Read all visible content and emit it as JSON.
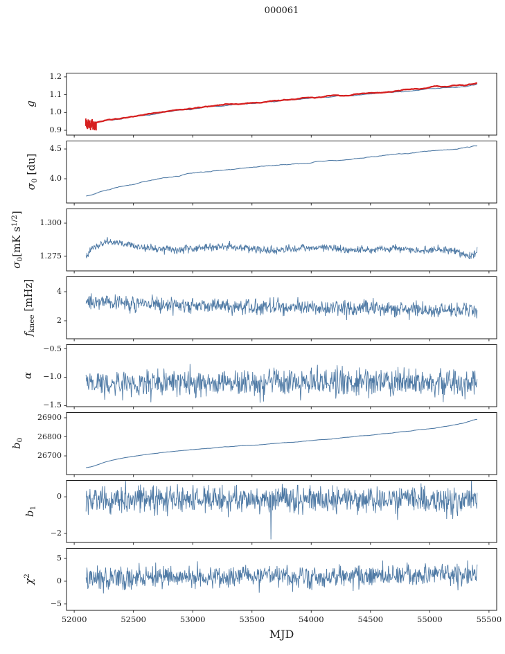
{
  "chart_data": {
    "type": "line",
    "title": "000061",
    "xlabel": "MJD",
    "grid": false,
    "legend": null,
    "xlim": [
      51935,
      55565
    ],
    "x_data_range": [
      52100,
      55400
    ],
    "xticks": [
      52000,
      52500,
      53000,
      53500,
      54000,
      54500,
      55000,
      55500
    ],
    "xtick_labels": [
      "52000",
      "52500",
      "53000",
      "53500",
      "54000",
      "54500",
      "55000",
      "55500"
    ],
    "colors": {
      "line": "#4f7aa5",
      "highlight": "#d62020",
      "axis": "#1c1c1c",
      "text": "#1c1c1c",
      "background": "#ffffff"
    },
    "panels": [
      {
        "id": "g",
        "label_text": "g",
        "label_segments": [
          {
            "t": "g",
            "s": "i"
          }
        ],
        "ylim": [
          0.873,
          1.223
        ],
        "ytick_values": [
          0.9,
          1.0,
          1.1,
          1.2
        ],
        "ytick_labels": [
          "0.9",
          "1.0",
          "1.1",
          "1.2"
        ],
        "series": [
          {
            "name": "gain-reference",
            "color": "#4f7aa5",
            "width": 1.1,
            "points": 420,
            "noise": 0.008,
            "smooth": 6,
            "trend": [
              [
                52100,
                0.93
              ],
              [
                52200,
                0.942
              ],
              [
                52400,
                0.964
              ],
              [
                52600,
                0.984
              ],
              [
                52800,
                1.004
              ],
              [
                53000,
                1.02
              ],
              [
                53200,
                1.034
              ],
              [
                53400,
                1.046
              ],
              [
                53600,
                1.057
              ],
              [
                53800,
                1.068
              ],
              [
                54000,
                1.08
              ],
              [
                54200,
                1.091
              ],
              [
                54400,
                1.101
              ],
              [
                54600,
                1.111
              ],
              [
                54800,
                1.12
              ],
              [
                55000,
                1.133
              ],
              [
                55150,
                1.139
              ],
              [
                55250,
                1.146
              ],
              [
                55350,
                1.155
              ],
              [
                55400,
                1.159
              ]
            ]
          },
          {
            "name": "gain",
            "color": "#d62020",
            "width": 2.3,
            "points": 420,
            "noise": 0.008,
            "smooth": 6,
            "trend": [
              [
                52100,
                0.933
              ],
              [
                52200,
                0.946
              ],
              [
                52400,
                0.968
              ],
              [
                52600,
                0.988
              ],
              [
                52800,
                1.008
              ],
              [
                53000,
                1.025
              ],
              [
                53200,
                1.038
              ],
              [
                53400,
                1.05
              ],
              [
                53600,
                1.061
              ],
              [
                53800,
                1.072
              ],
              [
                54000,
                1.085
              ],
              [
                54200,
                1.095
              ],
              [
                54400,
                1.105
              ],
              [
                54600,
                1.115
              ],
              [
                54800,
                1.125
              ],
              [
                55000,
                1.14
              ],
              [
                55150,
                1.147
              ],
              [
                55250,
                1.152
              ],
              [
                55350,
                1.16
              ],
              [
                55400,
                1.165
              ]
            ]
          }
        ],
        "errorbars": {
          "color": "#d62020",
          "x_start": 52098,
          "x_end": 52185,
          "n": 14,
          "y": 0.933,
          "y_jitter": 0.013,
          "yerr": 0.021
        }
      },
      {
        "id": "sigma0-du",
        "label_text": "σ0 [du]",
        "label_segments": [
          {
            "t": "σ",
            "s": "i"
          },
          {
            "t": "0",
            "s": "sub"
          },
          {
            "t": " [du]",
            "s": "n"
          }
        ],
        "ylim": [
          3.593,
          4.64
        ],
        "ytick_values": [
          4.0,
          4.5
        ],
        "ytick_labels": [
          "4.0",
          "4.5"
        ],
        "series": [
          {
            "name": "sigma0-du",
            "color": "#4f7aa5",
            "width": 1.1,
            "points": 460,
            "noise": 0.018,
            "smooth": 5,
            "trend": [
              [
                52100,
                3.7
              ],
              [
                52250,
                3.8
              ],
              [
                52400,
                3.87
              ],
              [
                52600,
                3.96
              ],
              [
                52800,
                4.03
              ],
              [
                53000,
                4.09
              ],
              [
                53200,
                4.135
              ],
              [
                53400,
                4.175
              ],
              [
                53600,
                4.21
              ],
              [
                53800,
                4.24
              ],
              [
                54000,
                4.275
              ],
              [
                54200,
                4.305
              ],
              [
                54400,
                4.34
              ],
              [
                54600,
                4.39
              ],
              [
                54800,
                4.42
              ],
              [
                55000,
                4.46
              ],
              [
                55200,
                4.5
              ],
              [
                55300,
                4.52
              ],
              [
                55400,
                4.56
              ]
            ]
          }
        ]
      },
      {
        "id": "sigma0-mks",
        "label_text": "σ0[mK s1/2]",
        "label_segments": [
          {
            "t": "σ",
            "s": "i"
          },
          {
            "t": "0",
            "s": "sub"
          },
          {
            "t": "[mK s",
            "s": "n"
          },
          {
            "t": "1/2",
            "s": "sup"
          },
          {
            "t": "]",
            "s": "n"
          }
        ],
        "ylim": [
          1.264,
          1.311
        ],
        "ytick_values": [
          1.275,
          1.3
        ],
        "ytick_labels": [
          "1.275",
          "1.300"
        ],
        "series": [
          {
            "name": "sigma0-mks",
            "color": "#4f7aa5",
            "width": 0.9,
            "points": 900,
            "noise": 0.0015,
            "smooth": 0,
            "trend": [
              [
                52100,
                1.2755
              ],
              [
                52180,
                1.282
              ],
              [
                52280,
                1.286
              ],
              [
                52400,
                1.2845
              ],
              [
                52550,
                1.282
              ],
              [
                52700,
                1.2805
              ],
              [
                52900,
                1.28
              ],
              [
                53100,
                1.282
              ],
              [
                53300,
                1.2825
              ],
              [
                53500,
                1.2808
              ],
              [
                53700,
                1.279
              ],
              [
                53900,
                1.281
              ],
              [
                54100,
                1.2818
              ],
              [
                54300,
                1.28
              ],
              [
                54500,
                1.2798
              ],
              [
                54700,
                1.2808
              ],
              [
                54900,
                1.279
              ],
              [
                55100,
                1.28
              ],
              [
                55250,
                1.278
              ],
              [
                55330,
                1.2745
              ],
              [
                55400,
                1.2785
              ]
            ]
          }
        ]
      },
      {
        "id": "fknee",
        "label_text": "fknee [mHz]",
        "label_segments": [
          {
            "t": "f",
            "s": "i"
          },
          {
            "t": "knee",
            "s": "sub"
          },
          {
            "t": " [mHz]",
            "s": "n"
          }
        ],
        "ylim": [
          0.76,
          5.05
        ],
        "ytick_values": [
          2,
          4
        ],
        "ytick_labels": [
          "2",
          "4"
        ],
        "series": [
          {
            "name": "fknee",
            "color": "#4f7aa5",
            "width": 0.9,
            "points": 900,
            "noise": 0.27,
            "smooth": 0,
            "trend": [
              [
                52100,
                3.35
              ],
              [
                52400,
                3.25
              ],
              [
                52800,
                3.12
              ],
              [
                53200,
                3.02
              ],
              [
                53600,
                2.95
              ],
              [
                54000,
                2.9
              ],
              [
                54400,
                2.85
              ],
              [
                54800,
                2.8
              ],
              [
                55100,
                2.76
              ],
              [
                55400,
                2.72
              ]
            ]
          }
        ]
      },
      {
        "id": "alpha",
        "label_text": "α",
        "label_segments": [
          {
            "t": "α",
            "s": "i"
          }
        ],
        "ylim": [
          -1.52,
          -0.42
        ],
        "ytick_values": [
          -1.5,
          -1.0,
          -0.5
        ],
        "ytick_labels": [
          "−1.5",
          "−1.0",
          "−0.5"
        ],
        "series": [
          {
            "name": "alpha",
            "color": "#4f7aa5",
            "width": 0.9,
            "points": 900,
            "noise": 0.115,
            "smooth": 0,
            "trend": [
              [
                52100,
                -1.1
              ],
              [
                55400,
                -1.1
              ]
            ]
          }
        ]
      },
      {
        "id": "b0",
        "label_text": "b0",
        "label_segments": [
          {
            "t": "b",
            "s": "i"
          },
          {
            "t": "0",
            "s": "sub"
          }
        ],
        "ylim": [
          26602,
          26929
        ],
        "ytick_values": [
          26700,
          26800,
          26900
        ],
        "ytick_labels": [
          "26700",
          "26800",
          "26900"
        ],
        "series": [
          {
            "name": "b0",
            "color": "#4f7aa5",
            "width": 1.1,
            "points": 460,
            "noise": 2.5,
            "smooth": 5,
            "trend": [
              [
                52100,
                26636
              ],
              [
                52250,
                26664
              ],
              [
                52400,
                26688
              ],
              [
                52550,
                26703
              ],
              [
                52700,
                26715
              ],
              [
                52850,
                26724
              ],
              [
                53000,
                26733
              ],
              [
                53200,
                26743
              ],
              [
                53400,
                26752
              ],
              [
                53600,
                26760
              ],
              [
                53800,
                26770
              ],
              [
                54000,
                26780
              ],
              [
                54200,
                26791
              ],
              [
                54400,
                26803
              ],
              [
                54600,
                26815
              ],
              [
                54800,
                26828
              ],
              [
                55000,
                26843
              ],
              [
                55150,
                26856
              ],
              [
                55300,
                26872
              ],
              [
                55400,
                26893
              ]
            ]
          }
        ]
      },
      {
        "id": "b1",
        "label_text": "b1",
        "label_segments": [
          {
            "t": "b",
            "s": "i"
          },
          {
            "t": "1",
            "s": "sub"
          }
        ],
        "ylim": [
          -2.49,
          0.91
        ],
        "ytick_values": [
          -2,
          0
        ],
        "ytick_labels": [
          "−2",
          "0"
        ],
        "series": [
          {
            "name": "b1",
            "color": "#4f7aa5",
            "width": 0.9,
            "points": 900,
            "noise": 0.38,
            "smooth": 0,
            "spikes": [
              {
                "x": 53660,
                "y": -2.32
              }
            ],
            "trend": [
              [
                52100,
                -0.18
              ],
              [
                55400,
                -0.18
              ]
            ]
          }
        ]
      },
      {
        "id": "chi2",
        "label_text": "χ2",
        "label_segments": [
          {
            "t": "χ",
            "s": "i"
          },
          {
            "t": "2",
            "s": "sup"
          }
        ],
        "ylim": [
          -6.4,
          7.3
        ],
        "ytick_values": [
          -5,
          0,
          5
        ],
        "ytick_labels": [
          "−5",
          "0",
          "5"
        ],
        "series": [
          {
            "name": "chi2",
            "color": "#4f7aa5",
            "width": 0.9,
            "points": 900,
            "noise": 1.2,
            "smooth": 0,
            "trend": [
              [
                52100,
                0.55
              ],
              [
                52700,
                0.85
              ],
              [
                53400,
                1.0
              ],
              [
                54100,
                1.1
              ],
              [
                54800,
                1.25
              ],
              [
                55400,
                1.55
              ]
            ]
          }
        ]
      }
    ]
  }
}
